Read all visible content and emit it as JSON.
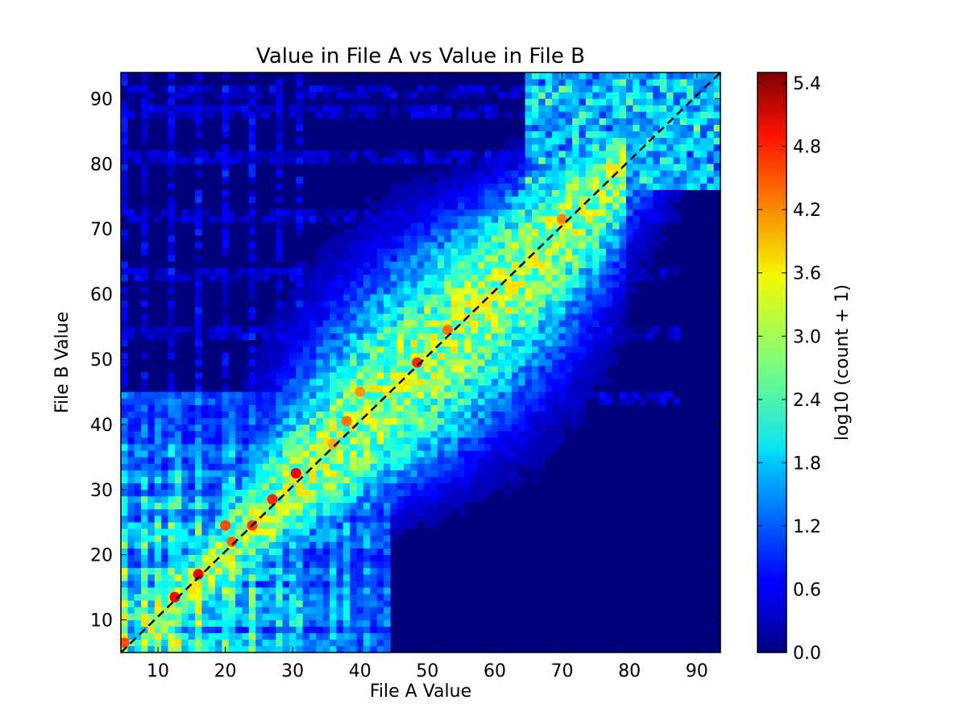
{
  "chart_data": {
    "type": "heatmap",
    "title": "Value in File A vs Value in File B",
    "xlabel": "File A Value",
    "ylabel": "File B Value",
    "xlim": [
      4.5,
      93.5
    ],
    "ylim": [
      5,
      94
    ],
    "xticks": [
      10,
      20,
      30,
      40,
      50,
      60,
      70,
      80,
      90
    ],
    "yticks": [
      10,
      20,
      30,
      40,
      50,
      60,
      70,
      80,
      90
    ],
    "colorbar": {
      "label": "log10 (count + 1)",
      "range": [
        0.0,
        5.5
      ],
      "ticks": [
        "0.0",
        "0.6",
        "1.2",
        "1.8",
        "2.4",
        "3.0",
        "3.6",
        "4.2",
        "4.8",
        "5.4"
      ],
      "colormap": "jet"
    },
    "reference_line": {
      "style": "dashed",
      "color": "#000000",
      "from": [
        4.5,
        5
      ],
      "to": [
        93.5,
        94
      ]
    },
    "hotspots": [
      {
        "x": 5,
        "y": 6.5,
        "z": 4.4
      },
      {
        "x": 12.5,
        "y": 13.5,
        "z": 4.8
      },
      {
        "x": 16,
        "y": 17,
        "z": 4.9
      },
      {
        "x": 20,
        "y": 24.5,
        "z": 4.4
      },
      {
        "x": 21,
        "y": 22,
        "z": 4.3
      },
      {
        "x": 24,
        "y": 24.5,
        "z": 4.5
      },
      {
        "x": 27,
        "y": 28.5,
        "z": 4.6
      },
      {
        "x": 30.5,
        "y": 32.5,
        "z": 4.9
      },
      {
        "x": 36,
        "y": 37,
        "z": 3.9
      },
      {
        "x": 38,
        "y": 40.5,
        "z": 4.2
      },
      {
        "x": 40,
        "y": 45,
        "z": 4.0
      },
      {
        "x": 48.5,
        "y": 49.5,
        "z": 4.6
      },
      {
        "x": 53,
        "y": 54.5,
        "z": 4.2
      },
      {
        "x": 70,
        "y": 71.5,
        "z": 4.1
      }
    ]
  }
}
